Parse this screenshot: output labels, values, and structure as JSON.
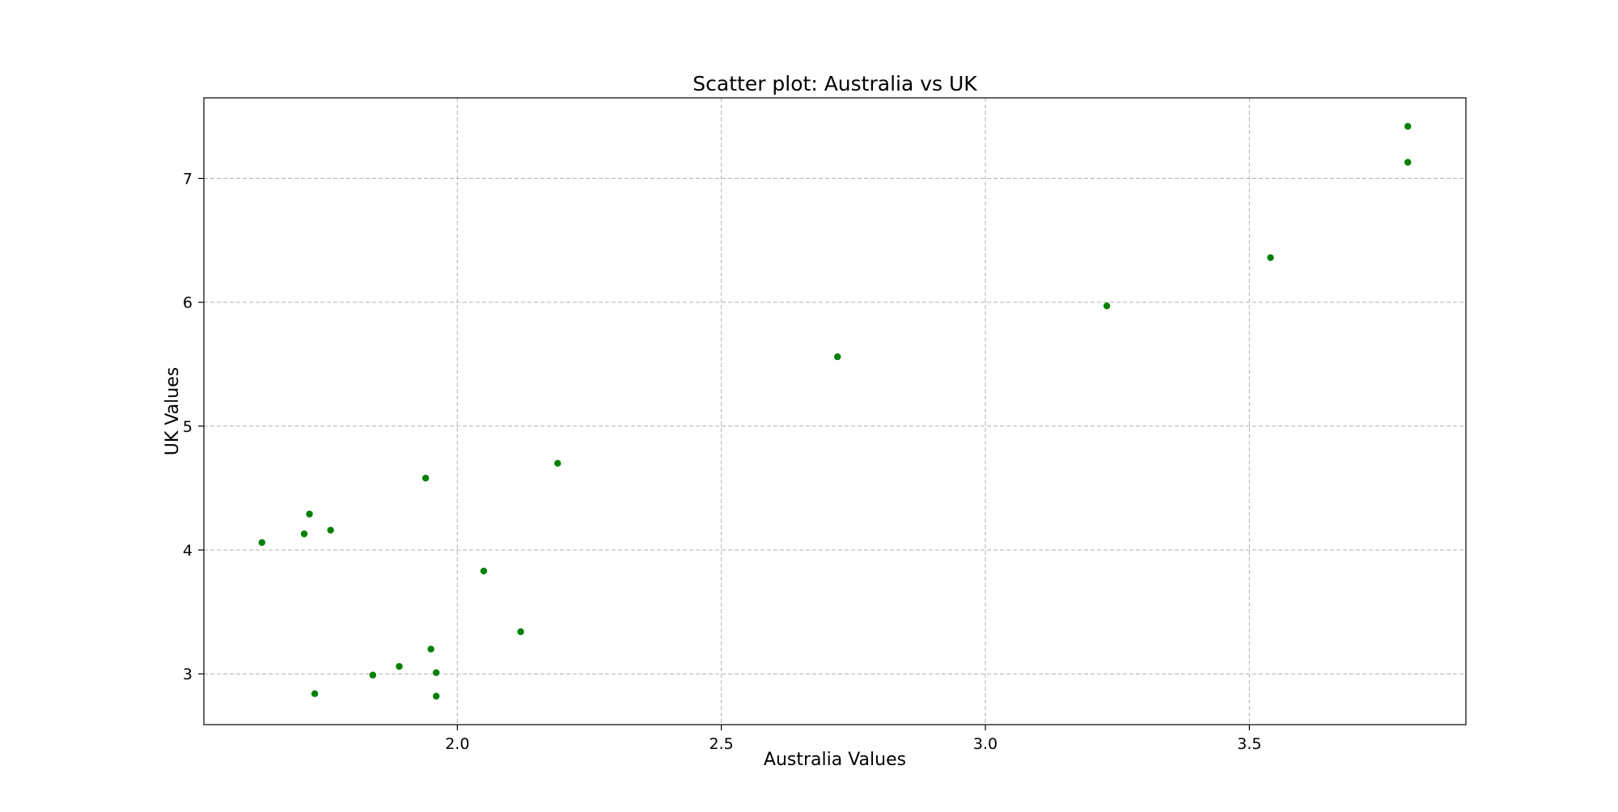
{
  "chart_data": {
    "type": "scatter",
    "title": "Scatter plot: Australia vs UK",
    "xlabel": "Australia Values",
    "ylabel": "UK Values",
    "xlim": [
      1.52,
      3.91
    ],
    "ylim": [
      2.59,
      7.65
    ],
    "xticks": [
      2.0,
      2.5,
      3.0,
      3.5
    ],
    "xtick_labels": [
      "2.0",
      "2.5",
      "3.0",
      "3.5"
    ],
    "yticks": [
      3,
      4,
      5,
      6,
      7
    ],
    "ytick_labels": [
      "3",
      "4",
      "5",
      "6",
      "7"
    ],
    "grid": true,
    "marker_color": "#008000",
    "points": [
      {
        "x": 1.63,
        "y": 4.06
      },
      {
        "x": 1.71,
        "y": 4.13
      },
      {
        "x": 1.72,
        "y": 4.29
      },
      {
        "x": 1.73,
        "y": 2.84
      },
      {
        "x": 1.76,
        "y": 4.16
      },
      {
        "x": 1.84,
        "y": 2.99
      },
      {
        "x": 1.89,
        "y": 3.06
      },
      {
        "x": 1.94,
        "y": 4.58
      },
      {
        "x": 1.95,
        "y": 3.2
      },
      {
        "x": 1.96,
        "y": 2.82
      },
      {
        "x": 1.96,
        "y": 3.01
      },
      {
        "x": 2.05,
        "y": 3.83
      },
      {
        "x": 2.12,
        "y": 3.34
      },
      {
        "x": 2.19,
        "y": 4.7
      },
      {
        "x": 2.72,
        "y": 5.56
      },
      {
        "x": 3.23,
        "y": 5.97
      },
      {
        "x": 3.54,
        "y": 6.36
      },
      {
        "x": 3.8,
        "y": 7.13
      },
      {
        "x": 3.8,
        "y": 7.42
      }
    ]
  }
}
